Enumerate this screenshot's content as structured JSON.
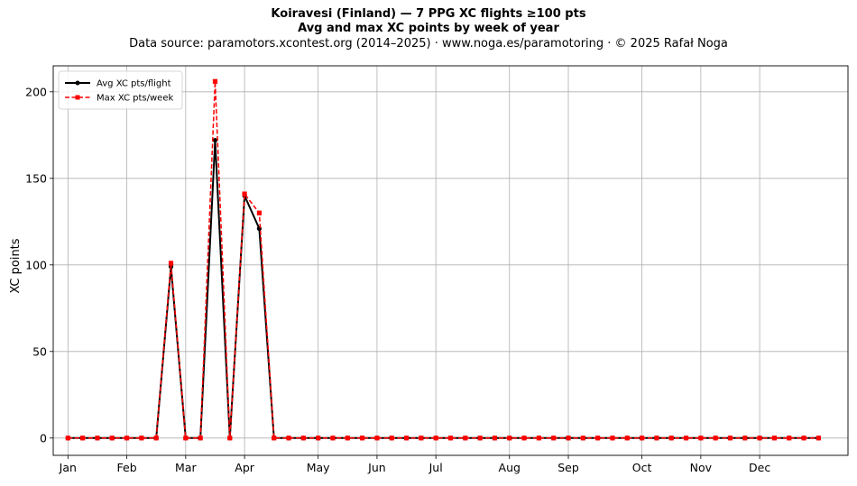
{
  "header": {
    "title": "Koiravesi (Finland)  —  7 PPG XC flights ≥100 pts",
    "subtitle": "Avg and max XC points by week of year",
    "source": "Data source: paramotors.xcontest.org (2014–2025)  ·  www.noga.es/paramotoring  ·  © 2025 Rafał Noga"
  },
  "chart_data": {
    "type": "line",
    "title": "Koiravesi (Finland)  —  7 PPG XC flights ≥100 pts",
    "subtitle": "Avg and max XC points by week of year",
    "xlabel": "",
    "ylabel": "XC points",
    "xlim": [
      0,
      54
    ],
    "ylim": [
      -10,
      215
    ],
    "grid": true,
    "legend_position": "top-left",
    "month_ticks": [
      {
        "label": "Jan",
        "week": 1
      },
      {
        "label": "Feb",
        "week": 5
      },
      {
        "label": "Mar",
        "week": 9
      },
      {
        "label": "Apr",
        "week": 13
      },
      {
        "label": "May",
        "week": 18
      },
      {
        "label": "Jun",
        "week": 22
      },
      {
        "label": "Jul",
        "week": 26
      },
      {
        "label": "Aug",
        "week": 31
      },
      {
        "label": "Sep",
        "week": 35
      },
      {
        "label": "Oct",
        "week": 40
      },
      {
        "label": "Nov",
        "week": 44
      },
      {
        "label": "Dec",
        "week": 48
      }
    ],
    "y_ticks": [
      0,
      50,
      100,
      150,
      200
    ],
    "x": [
      1,
      2,
      3,
      4,
      5,
      6,
      7,
      8,
      9,
      10,
      11,
      12,
      13,
      14,
      15,
      16,
      17,
      18,
      19,
      20,
      21,
      22,
      23,
      24,
      25,
      26,
      27,
      28,
      29,
      30,
      31,
      32,
      33,
      34,
      35,
      36,
      37,
      38,
      39,
      40,
      41,
      42,
      43,
      44,
      45,
      46,
      47,
      48,
      49,
      50,
      51,
      52
    ],
    "series": [
      {
        "name": "Avg XC pts/flight",
        "color": "#000000",
        "style": "solid",
        "marker": "circle",
        "values": [
          0,
          0,
          0,
          0,
          0,
          0,
          0,
          99,
          0,
          0,
          172,
          0,
          140,
          121,
          0,
          0,
          0,
          0,
          0,
          0,
          0,
          0,
          0,
          0,
          0,
          0,
          0,
          0,
          0,
          0,
          0,
          0,
          0,
          0,
          0,
          0,
          0,
          0,
          0,
          0,
          0,
          0,
          0,
          0,
          0,
          0,
          0,
          0,
          0,
          0,
          0,
          0
        ]
      },
      {
        "name": "Max XC pts/week",
        "color": "#ff0000",
        "style": "dashed",
        "marker": "square",
        "values": [
          0,
          0,
          0,
          0,
          0,
          0,
          0,
          101,
          0,
          0,
          206,
          0,
          141,
          130,
          0,
          0,
          0,
          0,
          0,
          0,
          0,
          0,
          0,
          0,
          0,
          0,
          0,
          0,
          0,
          0,
          0,
          0,
          0,
          0,
          0,
          0,
          0,
          0,
          0,
          0,
          0,
          0,
          0,
          0,
          0,
          0,
          0,
          0,
          0,
          0,
          0,
          0
        ]
      }
    ]
  }
}
